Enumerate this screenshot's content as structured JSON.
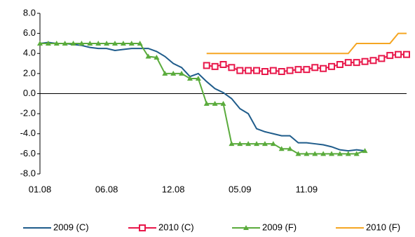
{
  "chart_data": {
    "type": "line",
    "categories": [
      "01.08",
      null,
      null,
      null,
      null,
      null,
      null,
      null,
      "06.08",
      null,
      null,
      null,
      null,
      null,
      null,
      null,
      "12.08",
      null,
      null,
      null,
      null,
      null,
      null,
      null,
      "05.09",
      null,
      null,
      null,
      null,
      null,
      null,
      null,
      "11.09",
      null,
      null,
      null,
      null,
      null,
      null,
      null,
      null,
      null,
      null,
      null,
      null
    ],
    "ylim": [
      -8,
      8
    ],
    "yticks": [
      {
        "value": -8,
        "label": "-8.0"
      },
      {
        "value": -6,
        "label": "-6.0"
      },
      {
        "value": -4,
        "label": "-4.0"
      },
      {
        "value": -2,
        "label": "-2.0"
      },
      {
        "value": 0,
        "label": "0.0"
      },
      {
        "value": 2,
        "label": "2.0"
      },
      {
        "value": 4,
        "label": "4.0"
      },
      {
        "value": 6,
        "label": "6.0"
      },
      {
        "value": 8,
        "label": "8.0"
      }
    ],
    "legend": "bottom",
    "series": [
      {
        "name": "2009 (C)",
        "color": "#1f5c8b",
        "marker": "none",
        "values": [
          5.0,
          5.1,
          5.0,
          5.0,
          4.9,
          4.8,
          4.6,
          4.5,
          4.5,
          4.3,
          4.4,
          4.5,
          4.5,
          4.5,
          4.2,
          3.7,
          3.0,
          2.6,
          1.7,
          2.0,
          1.2,
          0.5,
          0.1,
          -0.5,
          -1.5,
          -2.0,
          -3.5,
          -3.8,
          -4.0,
          -4.2,
          -4.2,
          -4.9,
          -4.9,
          -5.0,
          -5.1,
          -5.3,
          -5.6,
          -5.7,
          -5.6,
          -5.7,
          null,
          null,
          null,
          null,
          null
        ]
      },
      {
        "name": "2010 (C)",
        "color": "#e8174a",
        "marker": "square",
        "values": [
          null,
          null,
          null,
          null,
          null,
          null,
          null,
          null,
          null,
          null,
          null,
          null,
          null,
          null,
          null,
          null,
          null,
          null,
          null,
          null,
          2.8,
          2.7,
          2.9,
          2.6,
          2.3,
          2.3,
          2.3,
          2.2,
          2.3,
          2.2,
          2.3,
          2.4,
          2.4,
          2.6,
          2.5,
          2.7,
          2.9,
          3.1,
          3.1,
          3.2,
          3.3,
          3.5,
          3.8,
          3.9,
          3.9
        ]
      },
      {
        "name": "2009 (F)",
        "color": "#5aab3c",
        "marker": "triangle",
        "values": [
          5.0,
          5.0,
          5.0,
          5.0,
          5.0,
          5.0,
          5.0,
          5.0,
          5.0,
          5.0,
          5.0,
          5.0,
          5.0,
          3.7,
          3.6,
          2.0,
          2.0,
          2.0,
          1.5,
          1.5,
          -1.0,
          -1.0,
          -1.0,
          -5.0,
          -5.0,
          -5.0,
          -5.0,
          -5.0,
          -5.0,
          -5.5,
          -5.5,
          -6.0,
          -6.0,
          -6.0,
          -6.0,
          -6.0,
          -6.0,
          -6.0,
          -6.0,
          -5.7,
          null,
          null,
          null,
          null,
          null
        ]
      },
      {
        "name": "2010 (F)",
        "color": "#f5a623",
        "marker": "none",
        "values": [
          null,
          null,
          null,
          null,
          null,
          null,
          null,
          null,
          null,
          null,
          null,
          null,
          null,
          null,
          null,
          null,
          null,
          null,
          null,
          null,
          4.0,
          4.0,
          4.0,
          4.0,
          4.0,
          4.0,
          4.0,
          4.0,
          4.0,
          4.0,
          4.0,
          4.0,
          4.0,
          4.0,
          4.0,
          4.0,
          4.0,
          4.0,
          5.0,
          5.0,
          5.0,
          5.0,
          5.0,
          6.0,
          6.0
        ]
      }
    ]
  }
}
